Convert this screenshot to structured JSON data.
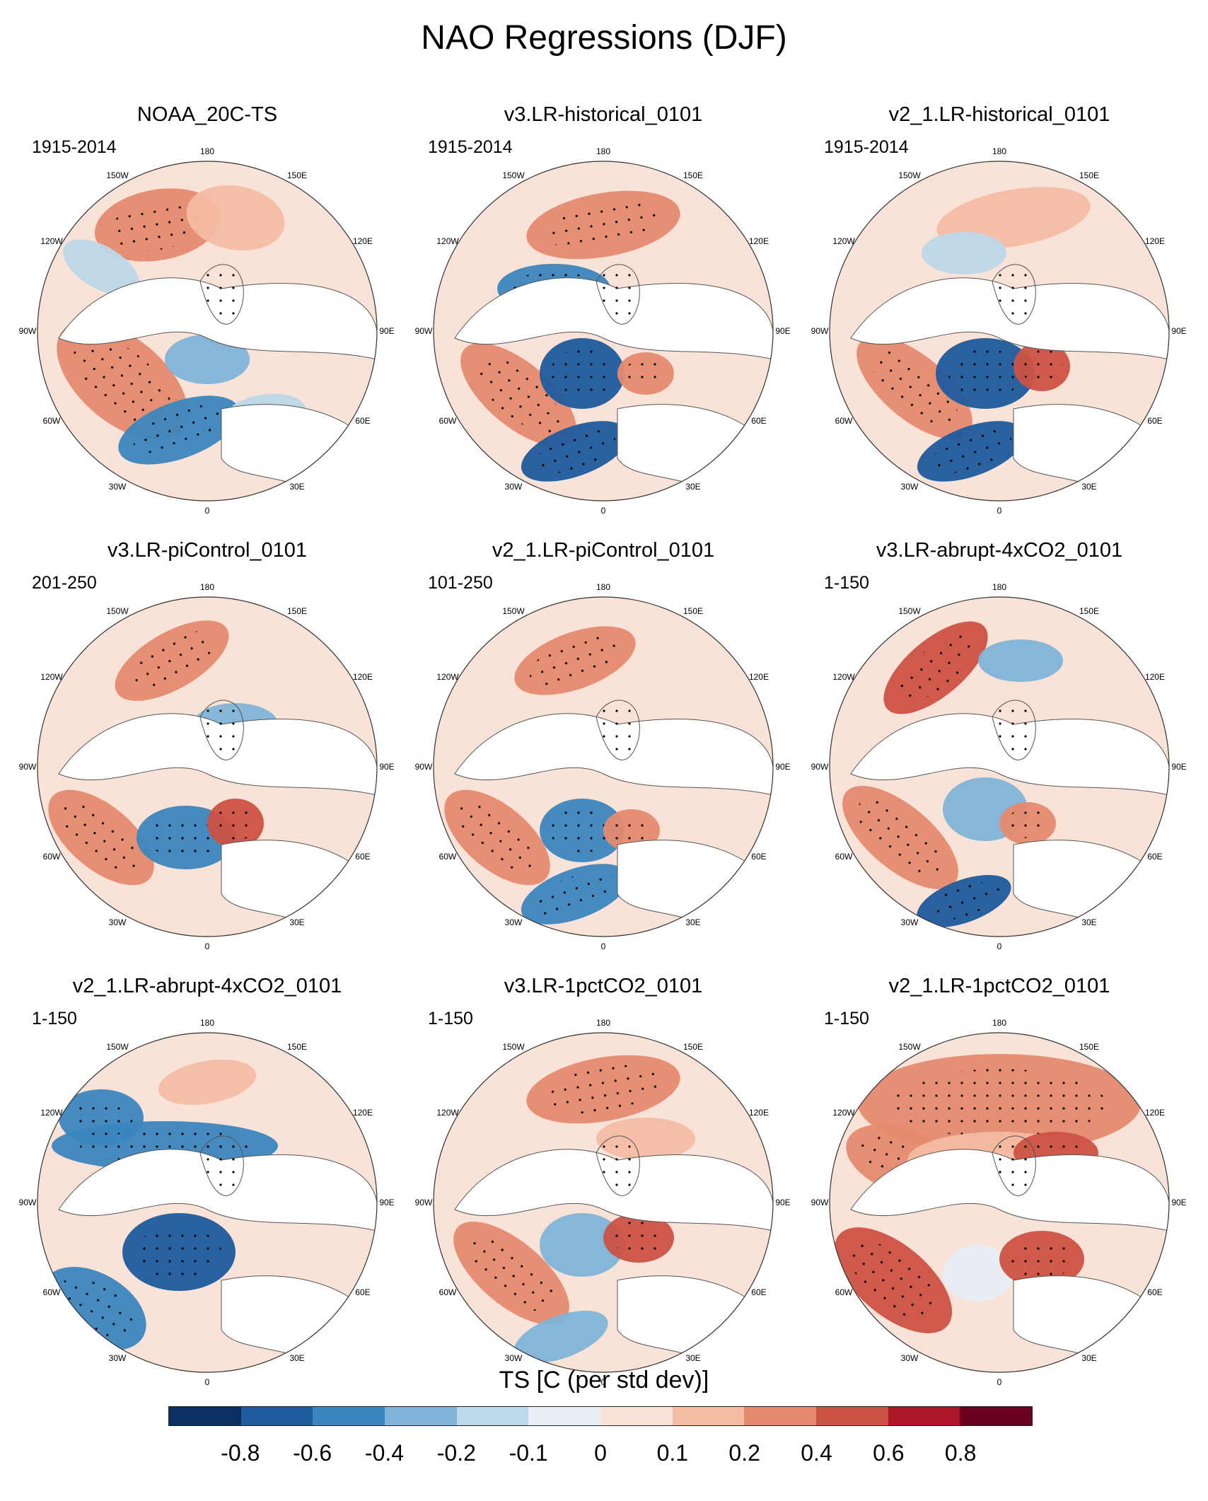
{
  "figure": {
    "title": "NAO Regressions (DJF)",
    "colorbar_title": "TS [C (per std dev)]",
    "colorbar_labels": [
      "-0.8",
      "-0.6",
      "-0.4",
      "-0.2",
      "-0.1",
      "0",
      "0.1",
      "0.2",
      "0.4",
      "0.6",
      "0.8"
    ],
    "colorbar_colors": [
      "#0b2f61",
      "#1f5b9d",
      "#3c86bf",
      "#7fb4d8",
      "#bcd8e9",
      "#e7eef4",
      "#f9e2d8",
      "#f4bca3",
      "#e58a6f",
      "#cc5244",
      "#aa1628",
      "#6a0020"
    ],
    "longitude_labels": [
      "180",
      "150E",
      "120E",
      "90E",
      "60E",
      "30E",
      "0",
      "30W",
      "60W",
      "90W",
      "120W",
      "150W"
    ]
  },
  "panels": [
    {
      "title": "NOAA_20C-TS",
      "period": "1915-2014"
    },
    {
      "title": "v3.LR-historical_0101",
      "period": "1915-2014"
    },
    {
      "title": "v2_1.LR-historical_0101",
      "period": "1915-2014"
    },
    {
      "title": "v3.LR-piControl_0101",
      "period": "201-250"
    },
    {
      "title": "v2_1.LR-piControl_0101",
      "period": "101-250"
    },
    {
      "title": "v3.LR-abrupt-4xCO2_0101",
      "period": "1-150"
    },
    {
      "title": "v2_1.LR-abrupt-4xCO2_0101",
      "period": "1-150"
    },
    {
      "title": "v3.LR-1pctCO2_0101",
      "period": "1-150"
    },
    {
      "title": "v2_1.LR-1pctCO2_0101",
      "period": "1-150"
    }
  ]
}
